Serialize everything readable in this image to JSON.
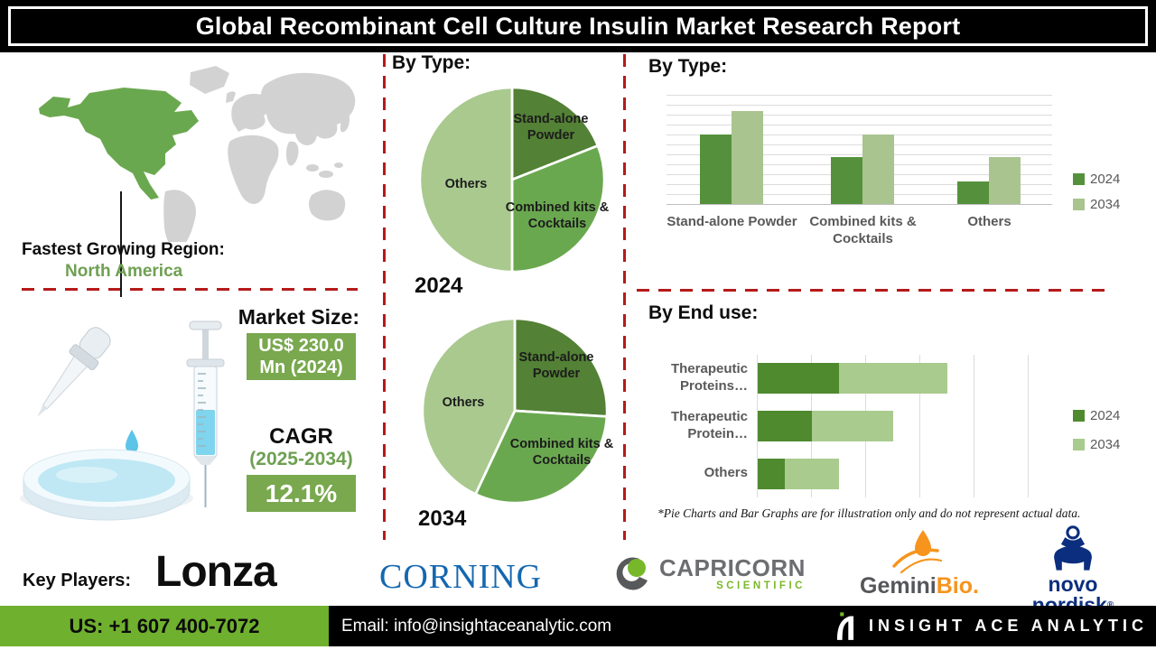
{
  "title": "Global Recombinant Cell Culture Insulin Market Research Report",
  "region": {
    "heading": "Fastest Growing Region:",
    "value": "North America"
  },
  "market": {
    "heading": "Market Size:",
    "size_line1": "US$ 230.0",
    "size_line2": "Mn (2024)",
    "cagr_label": "CAGR",
    "cagr_period": "(2025-2034)",
    "cagr_value": "12.1%"
  },
  "pie_section_title": "By Type:",
  "bar_section_title": "By Type:",
  "end_use_section_title": "By End use:",
  "disclaimer": "*Pie Charts and Bar Graphs are for illustration only and do not represent actual data.",
  "key_players": {
    "heading": "Key Players:",
    "lonza": "Lonza",
    "corning": "CORNING",
    "capricorn_name": "CAPRICORN",
    "capricorn_sub": "SCIENTIFIC",
    "gemini_part1": "Gemini",
    "gemini_part2": "Bio.",
    "novo": "novo nordisk",
    "novo_reg": "®"
  },
  "footer": {
    "phone": "US: +1 607 400-7072",
    "email": "Email: info@insightaceanalytic.com",
    "brand": "INSIGHT ACE ANALYTIC"
  },
  "colors": {
    "pie_dark_green": "#538135",
    "pie_mid_green": "#6aa84f",
    "pie_light_green": "#a9c98f",
    "map_highlight_green": "#6aa84f",
    "map_gray": "#d2d2d2",
    "dashed_red": "#b51a1a",
    "badge_green": "#79a84e",
    "footer_green": "#6fb02e"
  },
  "chart_data": [
    {
      "id": "by-type-pie-2024",
      "type": "pie",
      "title": "By Type:",
      "year_label": "2024",
      "note": "illustrative only",
      "slices": [
        {
          "label": "Stand-alone Powder",
          "value": 19,
          "color": "#538135"
        },
        {
          "label": "Combined kits & Cocktails",
          "value": 31,
          "color": "#6aa84f"
        },
        {
          "label": "Others",
          "value": 50,
          "color": "#a9c98f"
        }
      ]
    },
    {
      "id": "by-type-pie-2034",
      "type": "pie",
      "title": "By Type:",
      "year_label": "2034",
      "note": "illustrative only",
      "slices": [
        {
          "label": "Stand-alone Powder",
          "value": 26,
          "color": "#538135"
        },
        {
          "label": "Combined kits & Cocktails",
          "value": 31,
          "color": "#6aa84f"
        },
        {
          "label": "Others",
          "value": 43,
          "color": "#a9c98f"
        }
      ]
    },
    {
      "id": "by-type-grouped-bars",
      "type": "bar",
      "title": "By Type:",
      "note": "illustrative only, no value axis labels shown",
      "categories": [
        "Stand-alone Powder",
        "Combined kits & Cocktails",
        "Others"
      ],
      "series": [
        {
          "name": "2024",
          "color": "#55913c",
          "values": [
            70,
            47,
            23
          ]
        },
        {
          "name": "2034",
          "color": "#a9c48f",
          "values": [
            94,
            70,
            47
          ]
        }
      ],
      "ylim": [
        0,
        110
      ],
      "grid": "horizontal",
      "legend_position": "right"
    },
    {
      "id": "by-end-use-stacked-bars",
      "type": "area",
      "subtype": "stacked-horizontal-bar",
      "title": "By End use:",
      "note": "illustrative only, no value axis labels shown",
      "categories": [
        "Therapeutic Proteins…",
        "Therapeutic Protein…",
        "Others"
      ],
      "series": [
        {
          "name": "2024",
          "color": "#4f8a2e",
          "values": [
            30,
            20,
            10
          ]
        },
        {
          "name": "2034",
          "color": "#a9cb8e",
          "values": [
            40,
            30,
            20
          ]
        }
      ],
      "xlim": [
        0,
        110
      ],
      "grid": "vertical",
      "legend_position": "right"
    }
  ]
}
